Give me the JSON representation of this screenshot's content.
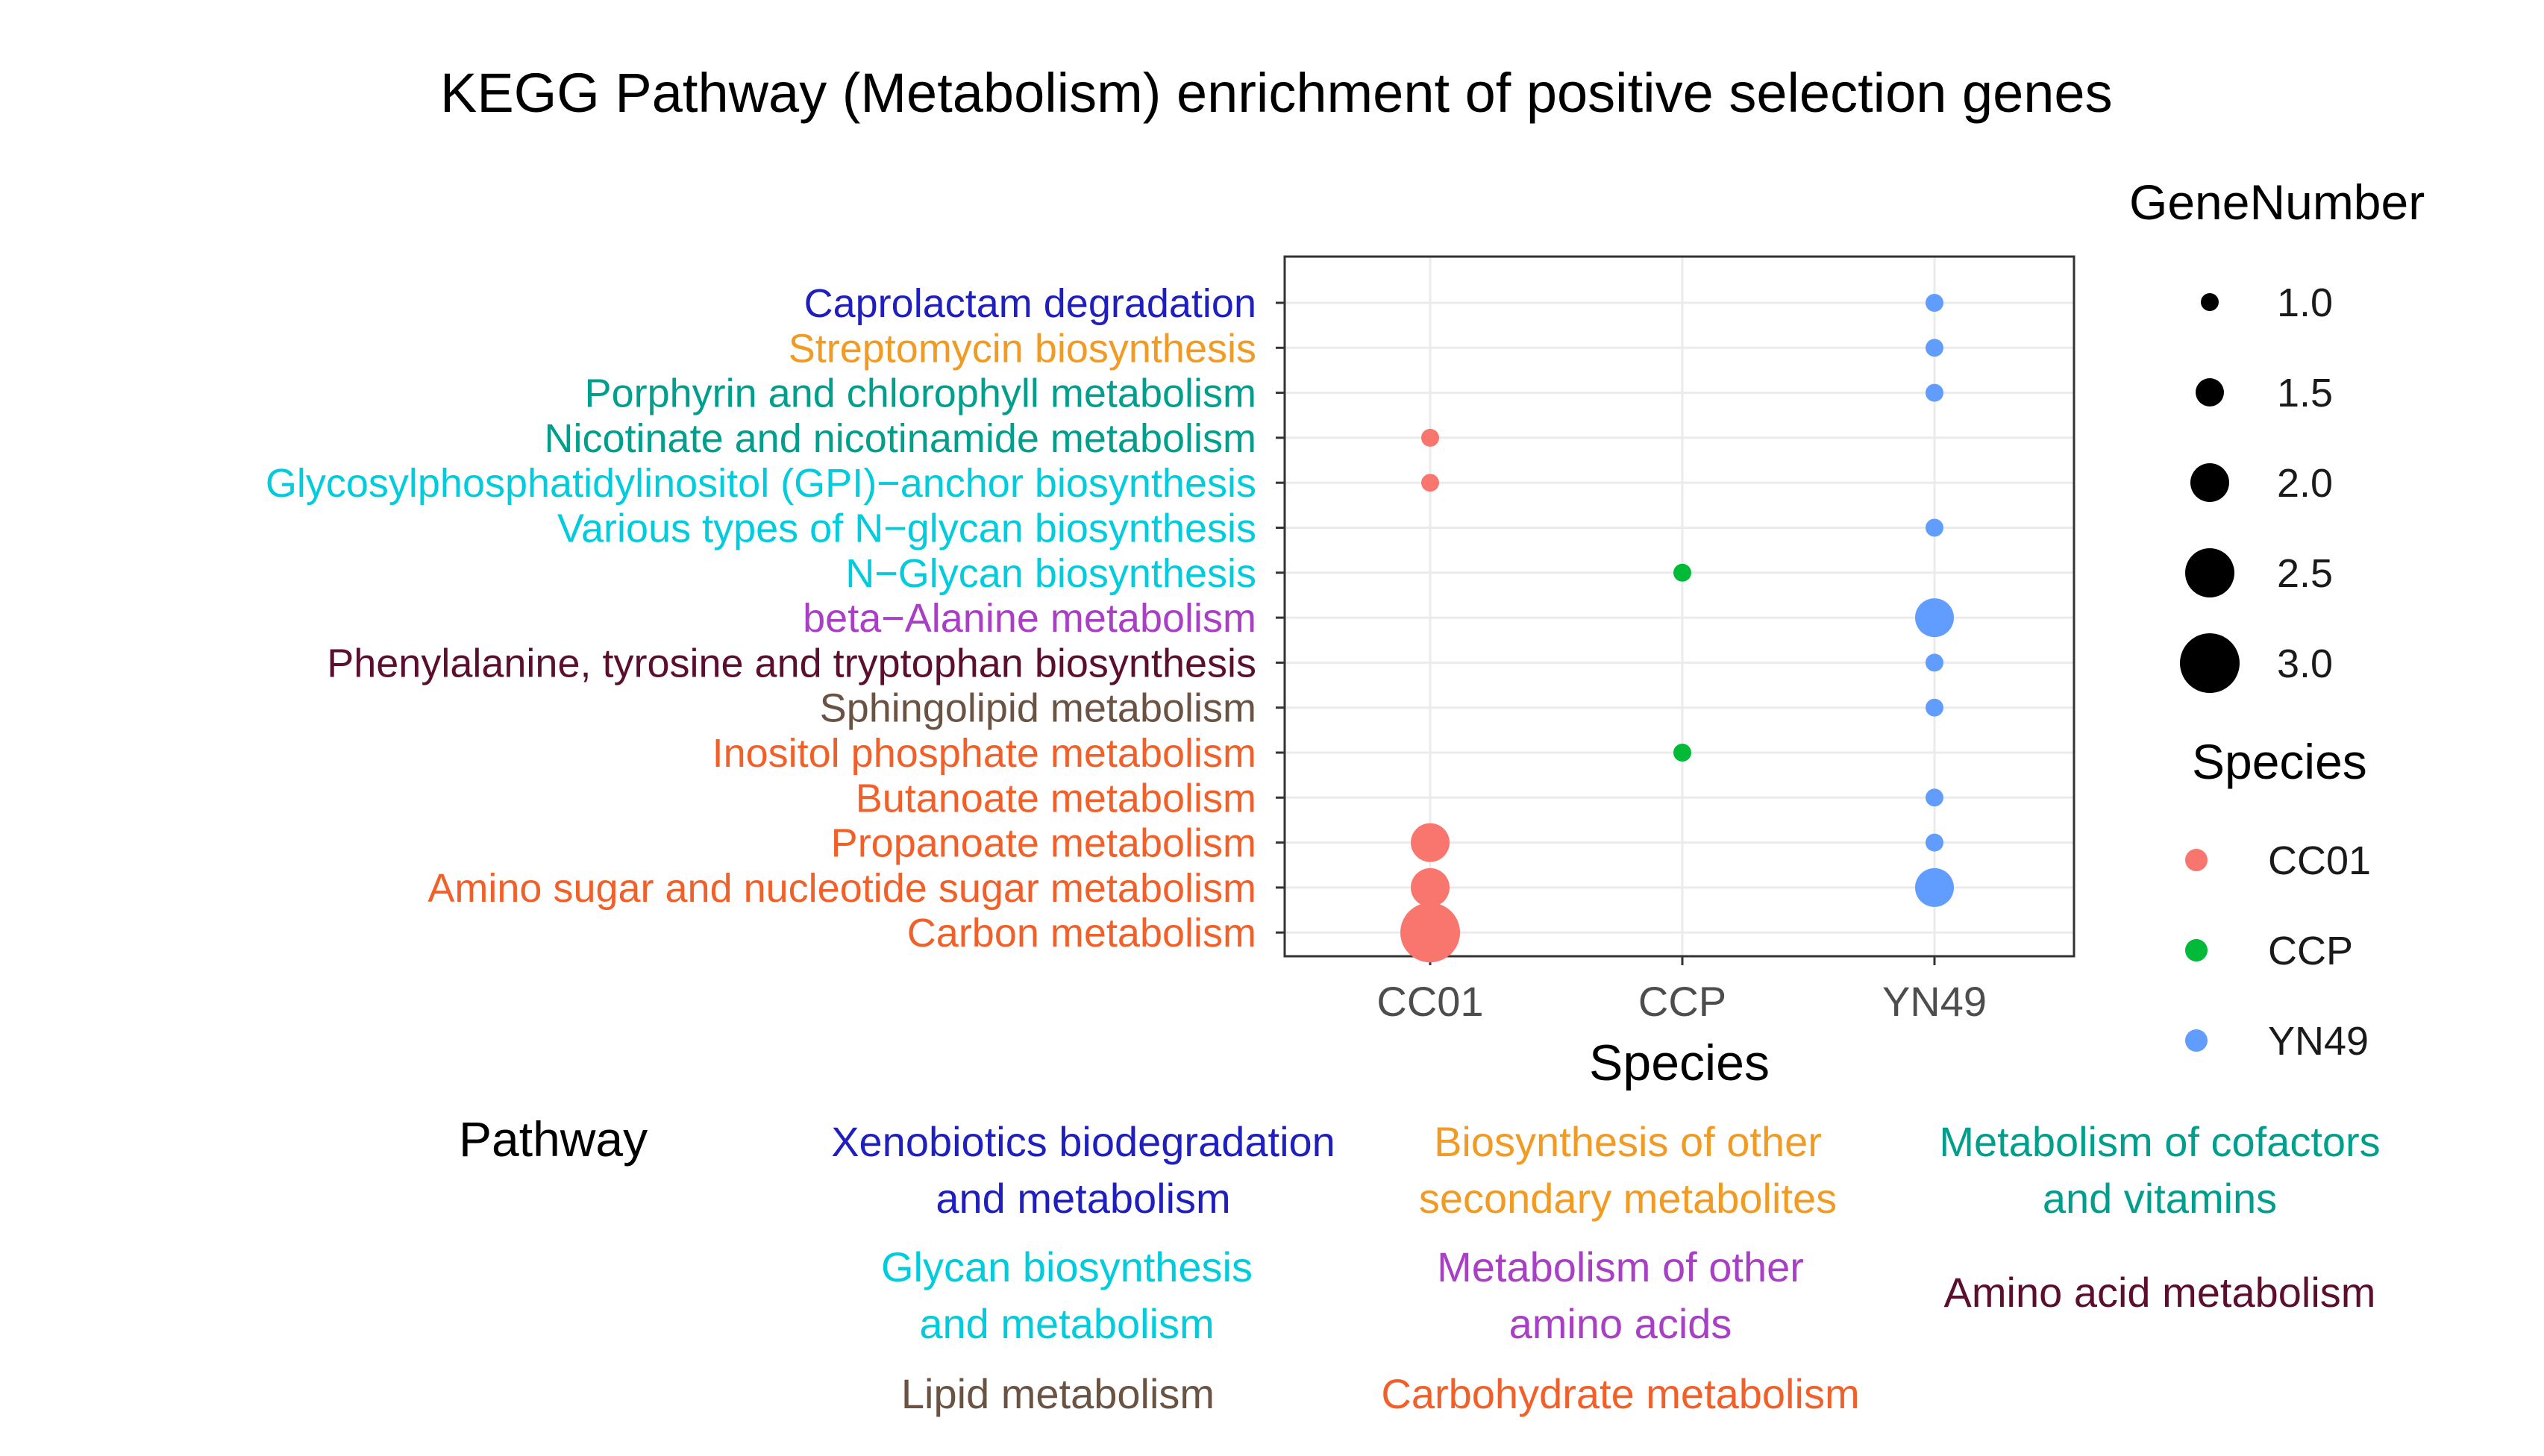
{
  "chart_data": {
    "type": "scatter",
    "title": "KEGG Pathway (Metabolism) enrichment of positive selection genes",
    "xlabel": "Species",
    "ylabel": "",
    "categories": [
      "CC01",
      "CCP",
      "YN49"
    ],
    "pathways": [
      {
        "name": "Caprolactam degradation",
        "group": "Xenobiotics biodegradation and metabolism"
      },
      {
        "name": "Streptomycin biosynthesis",
        "group": "Biosynthesis of other secondary metabolites"
      },
      {
        "name": "Porphyrin and chlorophyll metabolism",
        "group": "Metabolism of cofactors and vitamins"
      },
      {
        "name": "Nicotinate and nicotinamide metabolism",
        "group": "Metabolism of cofactors and vitamins"
      },
      {
        "name": "Glycosylphosphatidylinositol (GPI)−anchor biosynthesis",
        "group": "Glycan biosynthesis and metabolism"
      },
      {
        "name": "Various types of N−glycan biosynthesis",
        "group": "Glycan biosynthesis and metabolism"
      },
      {
        "name": "N−Glycan biosynthesis",
        "group": "Glycan biosynthesis and metabolism"
      },
      {
        "name": "beta−Alanine metabolism",
        "group": "Metabolism of other amino acids"
      },
      {
        "name": "Phenylalanine, tyrosine and tryptophan biosynthesis",
        "group": "Amino acid metabolism"
      },
      {
        "name": "Sphingolipid metabolism",
        "group": "Lipid metabolism"
      },
      {
        "name": "Inositol phosphate metabolism",
        "group": "Carbohydrate metabolism"
      },
      {
        "name": "Butanoate metabolism",
        "group": "Carbohydrate metabolism"
      },
      {
        "name": "Propanoate metabolism",
        "group": "Carbohydrate metabolism"
      },
      {
        "name": "Amino sugar and nucleotide sugar metabolism",
        "group": "Carbohydrate metabolism"
      },
      {
        "name": "Carbon metabolism",
        "group": "Carbohydrate metabolism"
      }
    ],
    "points": [
      {
        "species": "YN49",
        "pathway": "Caprolactam degradation",
        "gene_number": 1
      },
      {
        "species": "YN49",
        "pathway": "Streptomycin biosynthesis",
        "gene_number": 1
      },
      {
        "species": "YN49",
        "pathway": "Porphyrin and chlorophyll metabolism",
        "gene_number": 1
      },
      {
        "species": "CC01",
        "pathway": "Nicotinate and nicotinamide metabolism",
        "gene_number": 1
      },
      {
        "species": "CC01",
        "pathway": "Glycosylphosphatidylinositol (GPI)−anchor biosynthesis",
        "gene_number": 1
      },
      {
        "species": "YN49",
        "pathway": "Various types of N−glycan biosynthesis",
        "gene_number": 1
      },
      {
        "species": "CCP",
        "pathway": "N−Glycan biosynthesis",
        "gene_number": 1
      },
      {
        "species": "YN49",
        "pathway": "beta−Alanine metabolism",
        "gene_number": 2
      },
      {
        "species": "YN49",
        "pathway": "Phenylalanine, tyrosine and tryptophan biosynthesis",
        "gene_number": 1
      },
      {
        "species": "YN49",
        "pathway": "Sphingolipid metabolism",
        "gene_number": 1
      },
      {
        "species": "CCP",
        "pathway": "Inositol phosphate metabolism",
        "gene_number": 1
      },
      {
        "species": "YN49",
        "pathway": "Butanoate metabolism",
        "gene_number": 1
      },
      {
        "species": "CC01",
        "pathway": "Propanoate metabolism",
        "gene_number": 2
      },
      {
        "species": "YN49",
        "pathway": "Propanoate metabolism",
        "gene_number": 1
      },
      {
        "species": "CC01",
        "pathway": "Amino sugar and nucleotide sugar metabolism",
        "gene_number": 2
      },
      {
        "species": "YN49",
        "pathway": "Amino sugar and nucleotide sugar metabolism",
        "gene_number": 2
      },
      {
        "species": "CC01",
        "pathway": "Carbon metabolism",
        "gene_number": 3
      }
    ],
    "size_legend": {
      "title": "GeneNumber",
      "values": [
        1.0,
        1.5,
        2.0,
        2.5,
        3.0
      ],
      "labels": [
        "1.0",
        "1.5",
        "2.0",
        "2.5",
        "3.0"
      ]
    },
    "color_legend": {
      "title": "Species",
      "items": [
        {
          "label": "CC01",
          "color": "#F8766D"
        },
        {
          "label": "CCP",
          "color": "#00BA38"
        },
        {
          "label": "YN49",
          "color": "#619CFF"
        }
      ]
    },
    "pathway_legend": {
      "title": "Pathway",
      "groups": [
        {
          "name": "Xenobiotics biodegradation and metabolism",
          "lines": [
            "Xenobiotics biodegradation",
            "and metabolism"
          ],
          "color": "#1F1FBF"
        },
        {
          "name": "Biosynthesis of other secondary metabolites",
          "lines": [
            "Biosynthesis of other",
            "secondary metabolites"
          ],
          "color": "#F29B22"
        },
        {
          "name": "Metabolism of cofactors and vitamins",
          "lines": [
            "Metabolism of cofactors",
            "and vitamins"
          ],
          "color": "#009E8C"
        },
        {
          "name": "Glycan biosynthesis and metabolism",
          "lines": [
            "Glycan biosynthesis",
            "and metabolism"
          ],
          "color": "#00CCDD"
        },
        {
          "name": "Metabolism of other amino acids",
          "lines": [
            "Metabolism of other",
            "amino acids"
          ],
          "color": "#A83FC4"
        },
        {
          "name": "Amino acid metabolism",
          "lines": [
            "Amino acid metabolism"
          ],
          "color": "#5C0E2E"
        },
        {
          "name": "Lipid metabolism",
          "lines": [
            "Lipid metabolism"
          ],
          "color": "#6B5344"
        },
        {
          "name": "Carbohydrate metabolism",
          "lines": [
            "Carbohydrate metabolism"
          ],
          "color": "#F2602A"
        }
      ]
    }
  }
}
